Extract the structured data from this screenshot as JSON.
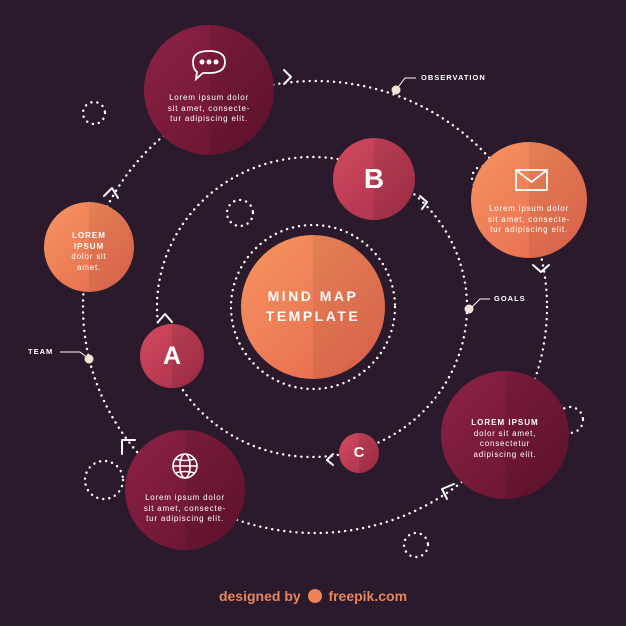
{
  "colors": {
    "background": "#2a1a2b",
    "orange_light": "#f48a5c",
    "orange_dark": "#e6694f",
    "maroon_light": "#8a1f44",
    "maroon_dark": "#6b1535",
    "crimson": "#c43a54",
    "dots": "#ffffff",
    "footer": "#e8855a"
  },
  "center": {
    "line1": "MIND MAP",
    "line2": "TEMPLATE"
  },
  "nodes": {
    "chat": {
      "icon": "chat-bubble-icon",
      "line1": "Lorem ipsum dolor",
      "line2": "sit amet, consecte-",
      "line3": "tur adipiscing elit."
    },
    "mail": {
      "icon": "mail-envelope-icon",
      "line1": "Lorem ipsum dolor",
      "line2": "sit amet, consecte-",
      "line3": "tur adipiscing elit."
    },
    "team_circle": {
      "line1": "LOREM",
      "line2": "IPSUM",
      "line3": "dolor sit",
      "line4": "amet."
    },
    "right_bottom": {
      "line1": "LOREM IPSUM",
      "line2": "dolor sit amet,",
      "line3": "consectetur",
      "line4": "adipiscing elit."
    },
    "globe": {
      "icon": "globe-icon",
      "line1": "Lorem ipsum dolor",
      "line2": "sit amet, consecte-",
      "line3": "tur adipiscing elit."
    }
  },
  "letters": {
    "a": "A",
    "b": "B",
    "c": "C"
  },
  "labels": {
    "observation": "OBSERVATION",
    "goals": "GOALS",
    "team": "TEAM"
  },
  "footer": {
    "prefix": "designed by",
    "brand": "freepik.com"
  }
}
